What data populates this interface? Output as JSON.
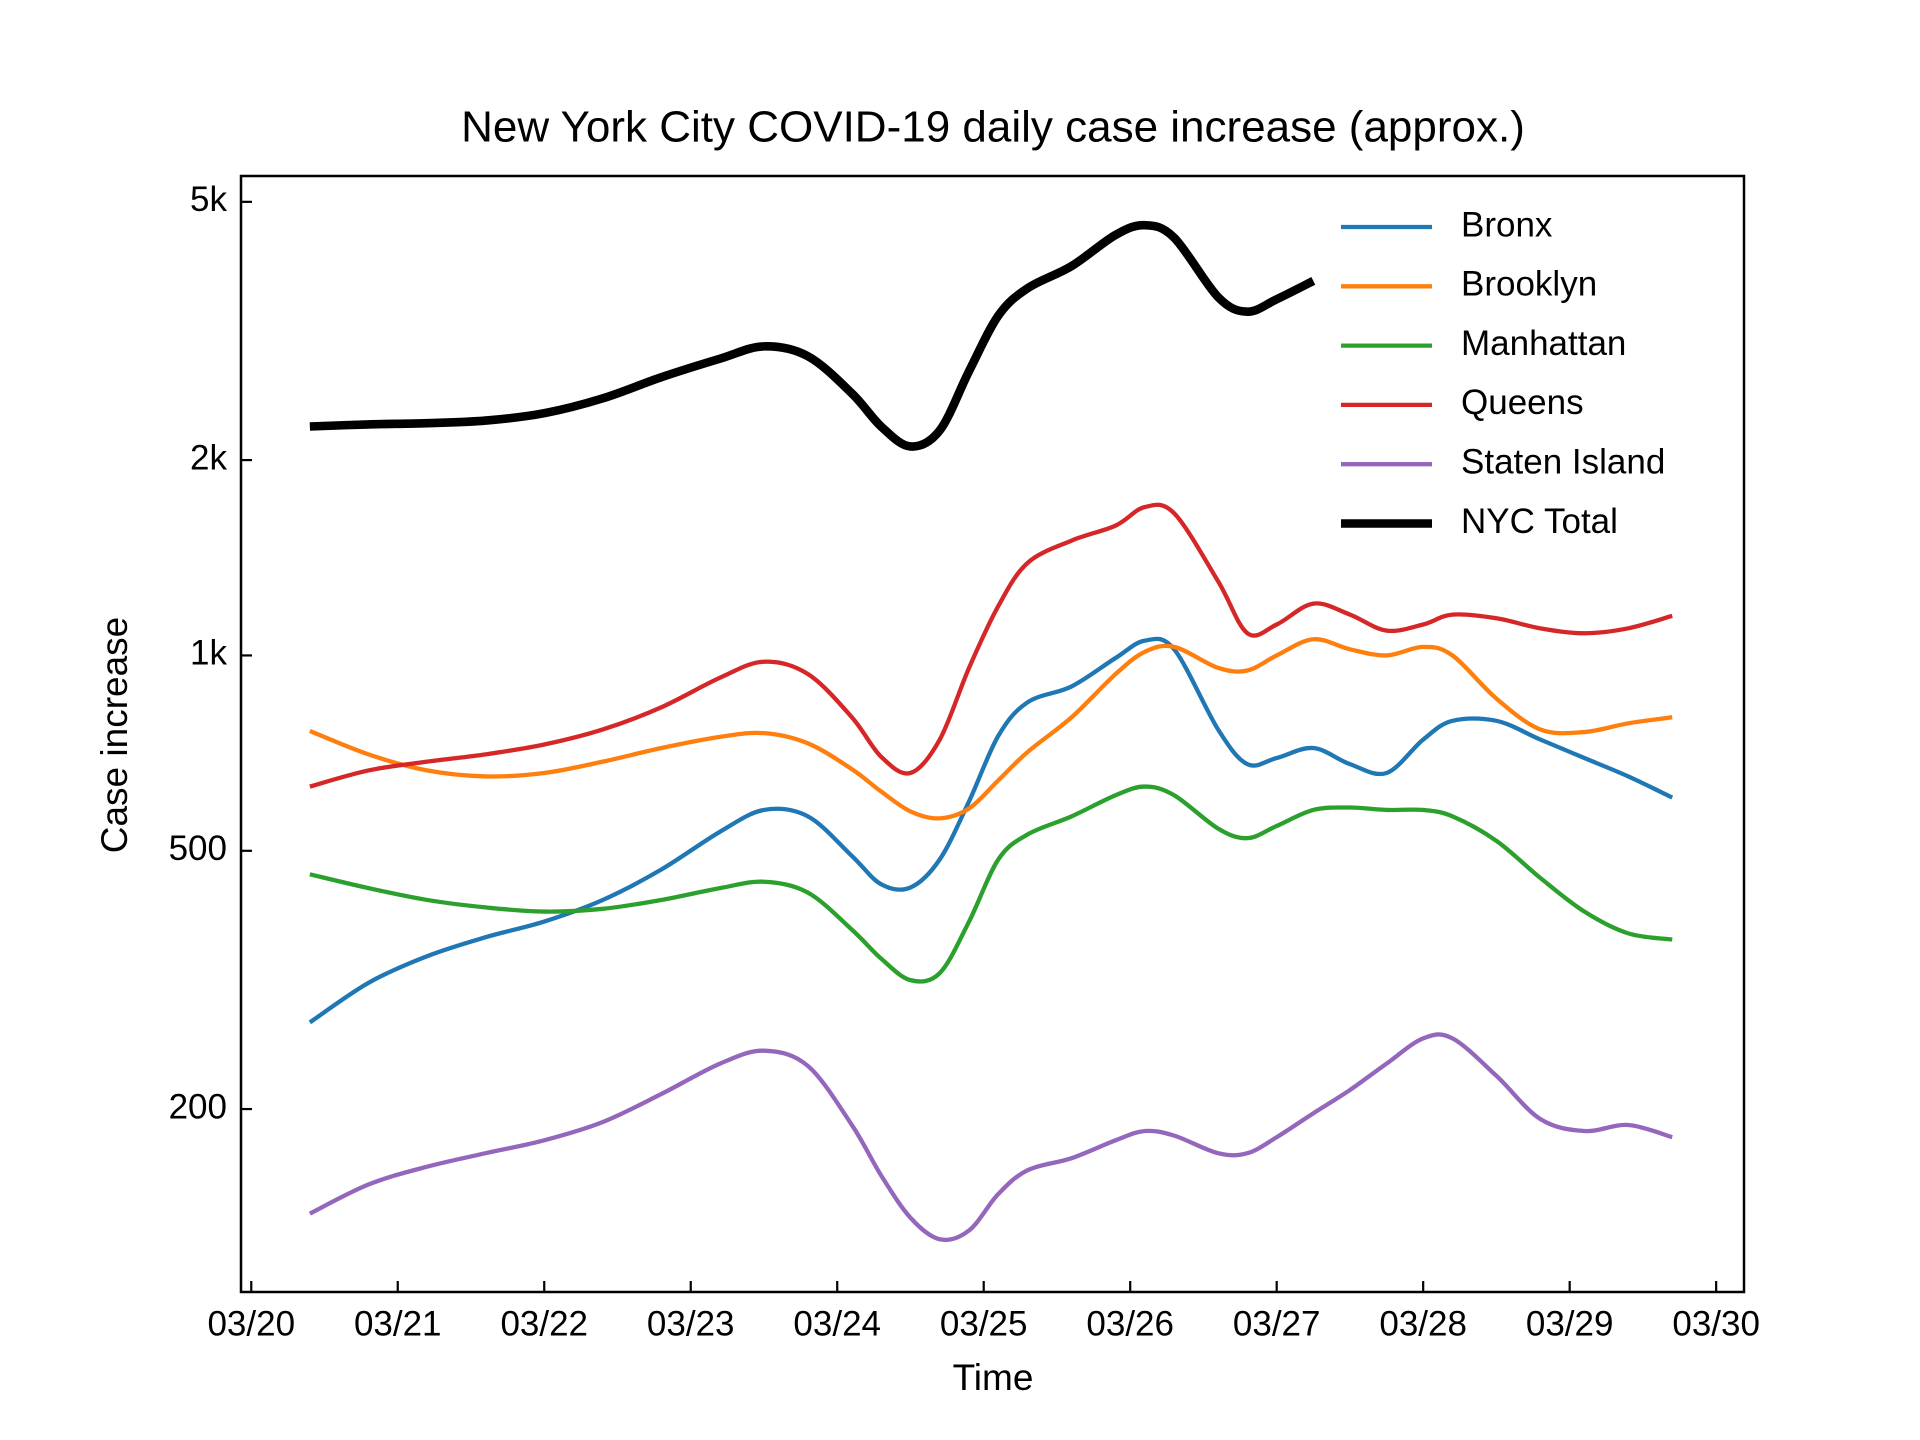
{
  "chart_data": {
    "type": "line",
    "title": "New York City COVID-19 daily case increase (approx.)",
    "xlabel": "Time",
    "ylabel": "Case increase",
    "yscale": "log",
    "legend": "upper right",
    "xlim": [
      -0.07,
      10.19
    ],
    "ylim": [
      104.5,
      5480
    ],
    "xticks": [
      {
        "value": 0,
        "label": "03/20"
      },
      {
        "value": 1,
        "label": "03/21"
      },
      {
        "value": 2,
        "label": "03/22"
      },
      {
        "value": 3,
        "label": "03/23"
      },
      {
        "value": 4,
        "label": "03/24"
      },
      {
        "value": 5,
        "label": "03/25"
      },
      {
        "value": 6,
        "label": "03/26"
      },
      {
        "value": 7,
        "label": "03/27"
      },
      {
        "value": 8,
        "label": "03/28"
      },
      {
        "value": 9,
        "label": "03/29"
      },
      {
        "value": 10,
        "label": "03/30"
      }
    ],
    "yticks": [
      200,
      500,
      {
        "value": 1000,
        "label": "1k"
      },
      {
        "value": 2000,
        "label": "2k"
      },
      {
        "value": 5000,
        "label": "5k"
      }
    ],
    "x": [
      0.4,
      0.8,
      1.2,
      1.6,
      2.0,
      2.4,
      2.8,
      3.2,
      3.5,
      3.8,
      4.1,
      4.3,
      4.5,
      4.7,
      4.9,
      5.1,
      5.3,
      5.6,
      5.9,
      6.1,
      6.3,
      6.6,
      6.8,
      7.0,
      7.25,
      7.5,
      7.75,
      8.0,
      8.2,
      8.5,
      8.8,
      9.1,
      9.4,
      9.7
    ],
    "series": [
      {
        "name": "Bronx",
        "color": "#1f77b4",
        "width": 4.3,
        "values": [
          272,
          313,
          344,
          368,
          389,
          420,
          468,
          535,
          578,
          565,
          491,
          444,
          439,
          485,
          596,
          752,
          847,
          896,
          991,
          1054,
          1022,
          769,
          680,
          695,
          720,
          680,
          659,
          742,
          793,
          793,
          742,
          695,
          651,
          604
        ]
      },
      {
        "name": "Brooklyn",
        "color": "#ff7f0e",
        "width": 4.3,
        "values": [
          765,
          704,
          665,
          651,
          659,
          686,
          720,
          749,
          759,
          732,
          668,
          617,
          575,
          561,
          581,
          642,
          710,
          803,
          936,
          1013,
          1031,
          957,
          948,
          1000,
          1059,
          1022,
          1000,
          1031,
          1000,
          858,
          769,
          762,
          786,
          803
        ]
      },
      {
        "name": "Manhattan",
        "color": "#2ca02c",
        "width": 4.3,
        "values": [
          460,
          438,
          420,
          409,
          403,
          407,
          420,
          438,
          448,
          431,
          378,
          341,
          316,
          324,
          389,
          485,
          530,
          565,
          609,
          628,
          609,
          541,
          523,
          546,
          578,
          583,
          578,
          578,
          565,
          518,
          454,
          403,
          373,
          365
        ]
      },
      {
        "name": "Queens",
        "color": "#d62728",
        "width": 4.3,
        "values": [
          628,
          665,
          686,
          704,
          729,
          769,
          832,
          924,
          978,
          936,
          803,
          698,
          659,
          742,
          957,
          1192,
          1389,
          1503,
          1585,
          1693,
          1656,
          1301,
          1082,
          1116,
          1202,
          1156,
          1092,
          1116,
          1156,
          1141,
          1101,
          1082,
          1101,
          1151
        ]
      },
      {
        "name": "Staten Island",
        "color": "#9467bd",
        "width": 4.3,
        "values": [
          138,
          153,
          163,
          171,
          179,
          191,
          211,
          235,
          246,
          233,
          189,
          158,
          136,
          126,
          130,
          148,
          161,
          168,
          179,
          185,
          182,
          171,
          171,
          181,
          197,
          214,
          235,
          257,
          257,
          225,
          193,
          185,
          189,
          181
        ]
      },
      {
        "name": "NYC Total",
        "color": "#000000",
        "width": 8.6,
        "values": [
          2253,
          2270,
          2280,
          2301,
          2362,
          2490,
          2684,
          2866,
          2994,
          2891,
          2534,
          2253,
          2099,
          2222,
          2742,
          3340,
          3680,
          3981,
          4446,
          4602,
          4403,
          3566,
          3386,
          3539,
          3777,
          null,
          null,
          null,
          null,
          null,
          null,
          null,
          null,
          null
        ]
      }
    ]
  }
}
